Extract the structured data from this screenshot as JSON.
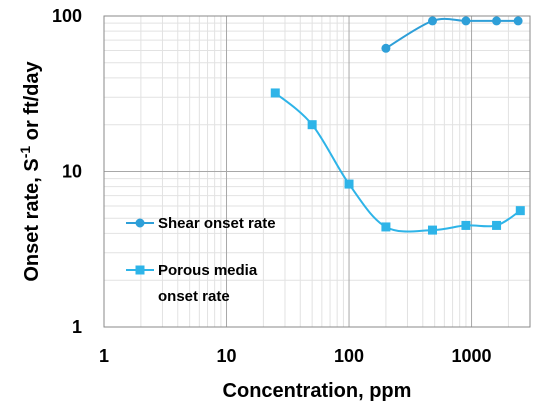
{
  "chart_data": {
    "type": "scatter",
    "xscale": "log",
    "yscale": "log",
    "xlim": [
      1,
      3000
    ],
    "ylim": [
      1,
      100
    ],
    "xticks": [
      1,
      10,
      100,
      1000
    ],
    "xtick_labels": [
      "1",
      "10",
      "100",
      "1000"
    ],
    "yticks": [
      1,
      10,
      100
    ],
    "ytick_labels": [
      "1",
      "10",
      "100"
    ],
    "xlabel": "Concentration, ppm",
    "ylabel_main": "Onset rate,  S",
    "ylabel_sup": "-1",
    "ylabel_tail": " or ft/day",
    "grid": true,
    "minor_grid": true,
    "legend_position": "lower-left",
    "series": [
      {
        "name": "Shear onset rate",
        "marker": "circle",
        "color": "#2e9fd8",
        "x": [
          200,
          480,
          900,
          1600,
          2400
        ],
        "y": [
          62,
          93,
          93,
          93,
          93
        ]
      },
      {
        "name_lines": [
          "Porous media",
          "onset rate"
        ],
        "marker": "square",
        "color": "#2eb4e8",
        "x": [
          25,
          50,
          100,
          200,
          480,
          900,
          1600,
          2500
        ],
        "y": [
          32,
          20,
          8.3,
          4.4,
          4.2,
          4.5,
          4.5,
          5.6
        ]
      }
    ]
  }
}
